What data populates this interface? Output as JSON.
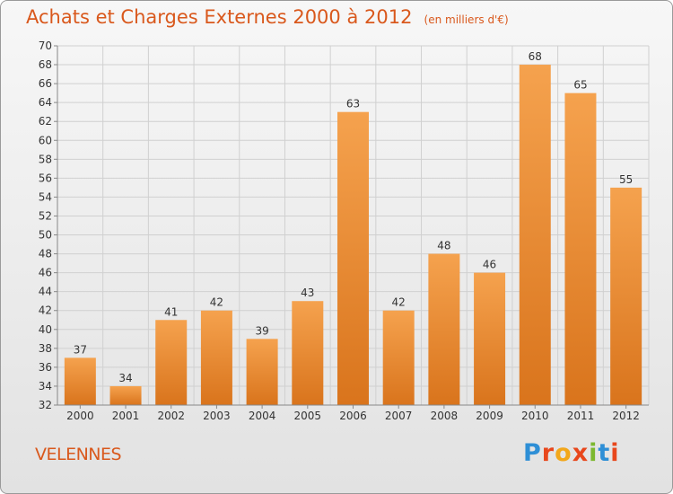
{
  "header": {
    "title": "Achats et Charges Externes 2000 à 2012",
    "unit": "(en milliers d'€)"
  },
  "commune": "VELENNES",
  "logo": {
    "text": "Proxiti",
    "letters": [
      {
        "char": "P",
        "color": "#2e8fd6"
      },
      {
        "char": "r",
        "color": "#e8471c"
      },
      {
        "char": "o",
        "color": "#f2a71b"
      },
      {
        "char": "x",
        "color": "#e8471c"
      },
      {
        "char": "i",
        "color": "#7cb82f"
      },
      {
        "char": "t",
        "color": "#2e8fd6"
      },
      {
        "char": "i",
        "color": "#e8471c"
      }
    ]
  },
  "chart_data": {
    "type": "bar",
    "title": "Achats et Charges Externes 2000 à 2012",
    "categories": [
      "2000",
      "2001",
      "2002",
      "2003",
      "2004",
      "2005",
      "2006",
      "2007",
      "2008",
      "2009",
      "2010",
      "2011",
      "2012"
    ],
    "values": [
      37,
      34,
      41,
      42,
      39,
      43,
      63,
      42,
      48,
      46,
      68,
      65,
      55
    ],
    "ylim": [
      32,
      70
    ],
    "ytick_step": 2,
    "grid": true,
    "colors": {
      "bar_top": "#f5a24e",
      "bar_bottom": "#d9741c",
      "label": "#333333",
      "grid": "#d0d0d0"
    }
  }
}
